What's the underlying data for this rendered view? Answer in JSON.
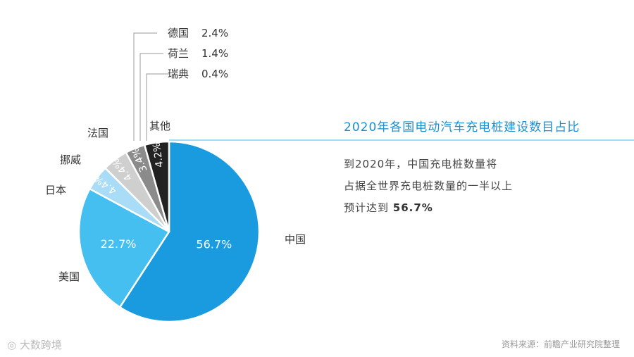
{
  "chart_data": {
    "type": "pie",
    "title": "2020年各国电动汽车充电桩建设数目占比",
    "slices": [
      {
        "name": "中国",
        "value": 56.7,
        "label": "56.7%",
        "color": "#1a9be0"
      },
      {
        "name": "美国",
        "value": 22.7,
        "label": "22.7%",
        "color": "#45bef0"
      },
      {
        "name": "日本",
        "value": 4.4,
        "label": "4.4%",
        "color": "#a9dcf6"
      },
      {
        "name": "挪威",
        "value": 4.4,
        "label": "4.4%",
        "color": "#cfcfcf"
      },
      {
        "name": "法国",
        "value": 3.4,
        "label": "3.4%",
        "color": "#8b8b8b"
      },
      {
        "name": "其他",
        "value": 4.2,
        "label": "4.2%",
        "color": "#222222",
        "breakdown": [
          {
            "name": "德国",
            "label": "2.4%"
          },
          {
            "name": "荷兰",
            "label": "1.4%"
          },
          {
            "name": "瑞典",
            "label": "0.4%"
          }
        ]
      }
    ]
  },
  "description": {
    "line1": "到2020年，中国充电桩数量将",
    "line2": "占据全世界充电桩数量的一半以上",
    "line3_prefix": "预计达到",
    "line3_value": "56.7%"
  },
  "source": "资料来源：前瞻产业研究院整理",
  "watermark": "大数跨境"
}
